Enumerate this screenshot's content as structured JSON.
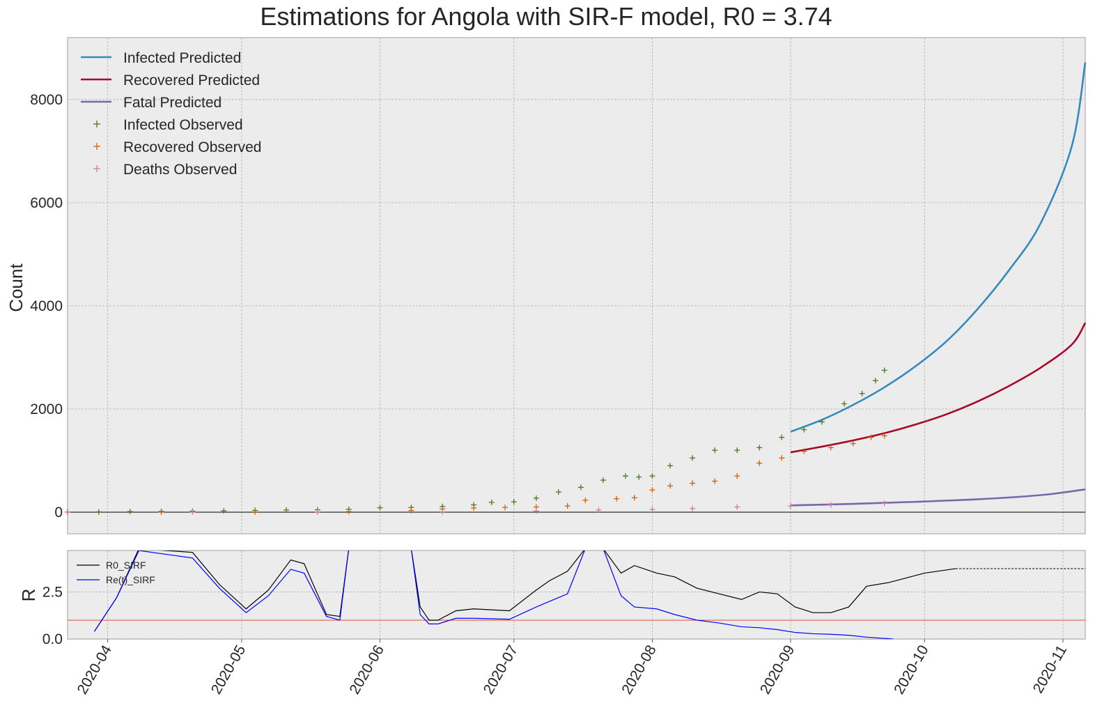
{
  "chart_data": [
    {
      "type": "line",
      "title": "Estimations for Angola with SIR-F model, R0 = 3.74",
      "xlabel": "",
      "ylabel": "Count",
      "xlim": [
        "2020-03-23",
        "2020-11-06"
      ],
      "ylim": [
        -420,
        9200
      ],
      "yticks": [
        0,
        2000,
        4000,
        6000,
        8000
      ],
      "xticks": [
        "2020-04",
        "2020-05",
        "2020-06",
        "2020-07",
        "2020-08",
        "2020-09",
        "2020-10",
        "2020-11"
      ],
      "grid": true,
      "legend_position": "top-left",
      "series": [
        {
          "name": "Infected Predicted",
          "kind": "line",
          "color": "#348abd",
          "x": [
            "2020-09-01",
            "2020-09-08",
            "2020-09-15",
            "2020-09-22",
            "2020-09-29",
            "2020-10-06",
            "2020-10-13",
            "2020-10-20",
            "2020-10-27",
            "2020-11-03",
            "2020-11-06"
          ],
          "y": [
            1560,
            1790,
            2080,
            2420,
            2830,
            3320,
            3950,
            4700,
            5600,
            7100,
            8720
          ]
        },
        {
          "name": "Recovered Predicted",
          "kind": "line",
          "color": "#a60628",
          "x": [
            "2020-09-01",
            "2020-09-08",
            "2020-09-15",
            "2020-09-22",
            "2020-09-29",
            "2020-10-06",
            "2020-10-13",
            "2020-10-20",
            "2020-10-27",
            "2020-11-03",
            "2020-11-06"
          ],
          "y": [
            1160,
            1270,
            1390,
            1530,
            1700,
            1900,
            2150,
            2450,
            2800,
            3250,
            3670
          ]
        },
        {
          "name": "Fatal Predicted",
          "kind": "line",
          "color": "#7a68a6",
          "x": [
            "2020-09-01",
            "2020-09-15",
            "2020-09-29",
            "2020-10-13",
            "2020-10-27",
            "2020-11-06"
          ],
          "y": [
            130,
            160,
            200,
            250,
            330,
            440
          ]
        },
        {
          "name": "Infected Observed",
          "kind": "scatter",
          "marker": "+",
          "color": "#467821",
          "x": [
            "2020-03-23",
            "2020-03-30",
            "2020-04-06",
            "2020-04-13",
            "2020-04-20",
            "2020-04-27",
            "2020-05-04",
            "2020-05-11",
            "2020-05-18",
            "2020-05-25",
            "2020-06-01",
            "2020-06-08",
            "2020-06-15",
            "2020-06-22",
            "2020-06-26",
            "2020-07-01",
            "2020-07-06",
            "2020-07-11",
            "2020-07-16",
            "2020-07-21",
            "2020-07-26",
            "2020-07-29",
            "2020-08-01",
            "2020-08-05",
            "2020-08-10",
            "2020-08-15",
            "2020-08-20",
            "2020-08-25",
            "2020-08-30",
            "2020-09-04",
            "2020-09-08",
            "2020-09-13",
            "2020-09-17",
            "2020-09-20",
            "2020-09-22"
          ],
          "y": [
            2,
            5,
            10,
            15,
            20,
            25,
            35,
            40,
            45,
            55,
            85,
            90,
            110,
            140,
            190,
            200,
            270,
            390,
            480,
            620,
            700,
            680,
            700,
            900,
            1050,
            1200,
            1200,
            1250,
            1450,
            1600,
            1750,
            2100,
            2300,
            2550,
            2750
          ]
        },
        {
          "name": "Recovered Observed",
          "kind": "scatter",
          "marker": "+",
          "color": "#d55e00",
          "x": [
            "2020-03-23",
            "2020-04-13",
            "2020-05-04",
            "2020-05-25",
            "2020-06-08",
            "2020-06-15",
            "2020-06-22",
            "2020-06-29",
            "2020-07-06",
            "2020-07-13",
            "2020-07-17",
            "2020-07-24",
            "2020-07-28",
            "2020-08-01",
            "2020-08-05",
            "2020-08-10",
            "2020-08-15",
            "2020-08-20",
            "2020-08-25",
            "2020-08-30",
            "2020-09-04",
            "2020-09-10",
            "2020-09-15",
            "2020-09-19",
            "2020-09-22"
          ],
          "y": [
            0,
            2,
            5,
            10,
            30,
            60,
            80,
            90,
            100,
            120,
            230,
            260,
            280,
            430,
            510,
            560,
            600,
            700,
            950,
            1050,
            1180,
            1250,
            1330,
            1450,
            1480
          ]
        },
        {
          "name": "Deaths Observed",
          "kind": "scatter",
          "marker": "+",
          "color": "#cc79a7",
          "x": [
            "2020-03-23",
            "2020-04-20",
            "2020-05-18",
            "2020-06-15",
            "2020-07-06",
            "2020-07-20",
            "2020-08-01",
            "2020-08-10",
            "2020-08-20",
            "2020-09-01",
            "2020-09-10",
            "2020-09-22"
          ],
          "y": [
            0,
            2,
            4,
            6,
            20,
            40,
            50,
            70,
            100,
            120,
            140,
            170
          ]
        }
      ]
    },
    {
      "type": "line",
      "title": "",
      "xlabel": "",
      "ylabel": "R",
      "xlim": [
        "2020-03-23",
        "2020-11-06"
      ],
      "ylim": [
        0,
        4.7
      ],
      "yticks": [
        "0.0",
        "2.5"
      ],
      "xticks": [
        "2020-04",
        "2020-05",
        "2020-06",
        "2020-07",
        "2020-08",
        "2020-09",
        "2020-10",
        "2020-11"
      ],
      "grid": true,
      "legend_position": "top-left",
      "reference_line": {
        "y": 1.0,
        "color": "#e24a33"
      },
      "series": [
        {
          "name": "R0_SIRF",
          "color": "#000000",
          "x": [
            "2020-03-29",
            "2020-04-03",
            "2020-04-08",
            "2020-04-20",
            "2020-04-26",
            "2020-05-02",
            "2020-05-07",
            "2020-05-12",
            "2020-05-15",
            "2020-05-20",
            "2020-05-23",
            "2020-05-25",
            "2020-06-08",
            "2020-06-10",
            "2020-06-12",
            "2020-06-14",
            "2020-06-18",
            "2020-06-22",
            "2020-06-30",
            "2020-07-06",
            "2020-07-09",
            "2020-07-13",
            "2020-07-17",
            "2020-07-21",
            "2020-07-25",
            "2020-07-28",
            "2020-08-02",
            "2020-08-06",
            "2020-08-11",
            "2020-08-16",
            "2020-08-21",
            "2020-08-25",
            "2020-08-29",
            "2020-09-02",
            "2020-09-06",
            "2020-09-10",
            "2020-09-14",
            "2020-09-18",
            "2020-09-23",
            "2020-10-01",
            "2020-10-08"
          ],
          "y": [
            0.4,
            2.2,
            4.8,
            4.6,
            2.9,
            1.6,
            2.6,
            4.2,
            4.0,
            1.3,
            1.2,
            4.8,
            4.8,
            1.7,
            1.0,
            1.0,
            1.5,
            1.6,
            1.5,
            2.6,
            3.1,
            3.6,
            4.8,
            4.8,
            3.5,
            3.9,
            3.5,
            3.3,
            2.7,
            2.4,
            2.1,
            2.5,
            2.4,
            1.7,
            1.4,
            1.4,
            1.7,
            2.8,
            3.0,
            3.5,
            3.74
          ]
        },
        {
          "name": "Re(t)_SIRF",
          "color": "#0000ff",
          "x": [
            "2020-03-29",
            "2020-04-03",
            "2020-04-08",
            "2020-04-20",
            "2020-04-26",
            "2020-05-02",
            "2020-05-07",
            "2020-05-12",
            "2020-05-15",
            "2020-05-20",
            "2020-05-23",
            "2020-05-25",
            "2020-06-08",
            "2020-06-10",
            "2020-06-12",
            "2020-06-14",
            "2020-06-18",
            "2020-06-22",
            "2020-06-30",
            "2020-07-06",
            "2020-07-09",
            "2020-07-13",
            "2020-07-17",
            "2020-07-21",
            "2020-07-25",
            "2020-07-28",
            "2020-08-02",
            "2020-08-06",
            "2020-08-11",
            "2020-08-16",
            "2020-08-21",
            "2020-08-25",
            "2020-08-29",
            "2020-09-02",
            "2020-09-06",
            "2020-09-10",
            "2020-09-14",
            "2020-09-18",
            "2020-09-24"
          ],
          "y": [
            0.4,
            2.2,
            4.7,
            4.3,
            2.7,
            1.4,
            2.3,
            3.7,
            3.5,
            1.2,
            1.0,
            4.8,
            4.8,
            1.3,
            0.8,
            0.8,
            1.1,
            1.1,
            1.05,
            1.7,
            2.0,
            2.4,
            4.8,
            4.8,
            2.3,
            1.7,
            1.6,
            1.3,
            1.0,
            0.85,
            0.65,
            0.6,
            0.5,
            0.35,
            0.28,
            0.25,
            0.2,
            0.1,
            0.0
          ]
        }
      ],
      "projection": {
        "from": "2020-10-08",
        "y": 3.74,
        "style": "dashed"
      }
    }
  ],
  "main": {
    "title": "Estimations for Angola with SIR-F model, R0 = 3.74",
    "ylabel": "Count",
    "legend": [
      "Infected Predicted",
      "Recovered Predicted",
      "Fatal Predicted",
      "Infected Observed",
      "Recovered Observed",
      "Deaths Observed"
    ]
  },
  "sub": {
    "ylabel": "R",
    "legend": [
      "R0_SIRF",
      "Re(t)_SIRF"
    ]
  },
  "colors": {
    "background": "#ececec",
    "grid": "#b0b0b0",
    "infected": "#348abd",
    "recovered": "#a60628",
    "fatal": "#7a68a6",
    "infected_obs": "#467821",
    "recovered_obs": "#d55e00",
    "deaths_obs": "#cc79a7"
  }
}
